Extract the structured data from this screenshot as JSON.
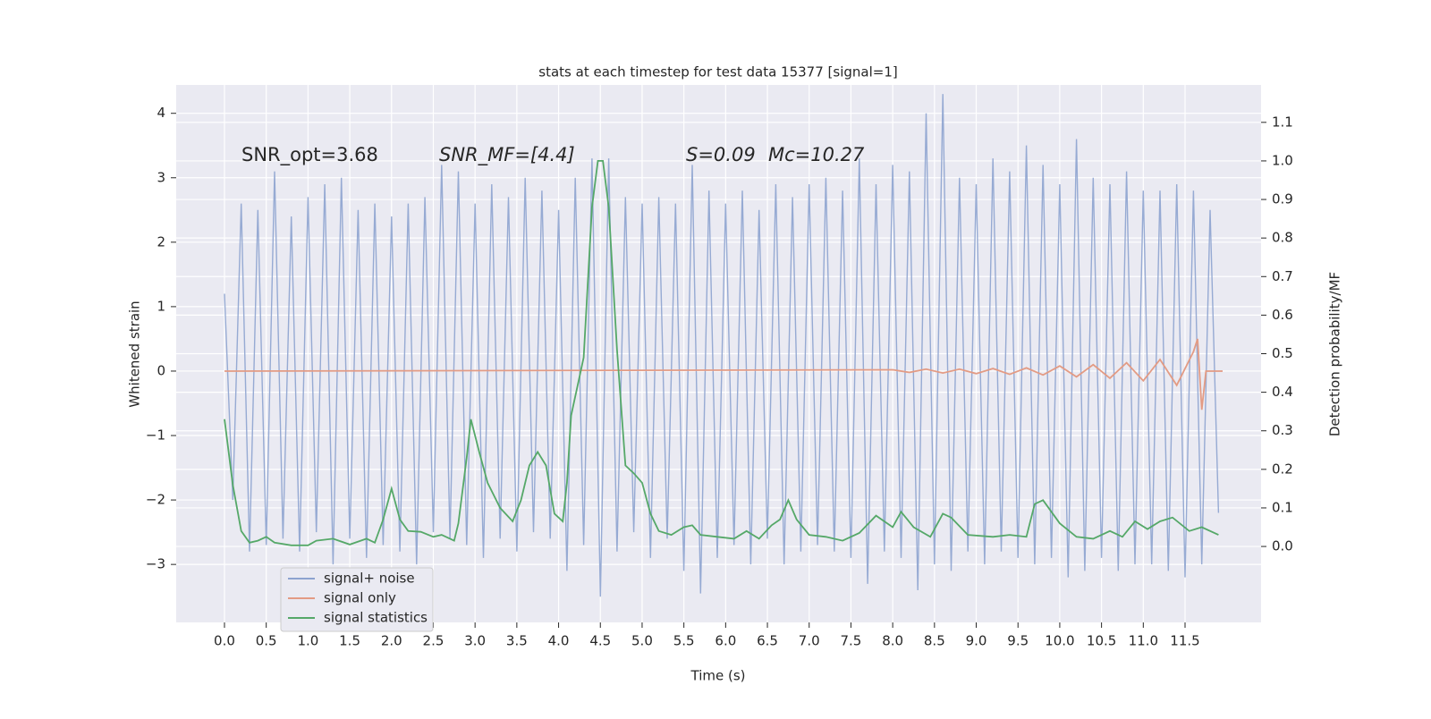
{
  "chart_data": {
    "type": "line",
    "title": "stats at each timestep for test data 15377 [signal=1]",
    "xlabel": "Time (s)",
    "ylabel": "Whitened strain",
    "y2label": "Detection probability/MF",
    "annotations": [
      "SNR_opt=3.68",
      "SNR_MF=[4.4]",
      "S=0.09",
      "Mc=10.27"
    ],
    "xlim": [
      -0.578,
      12.41
    ],
    "ylim": [
      -3.9,
      4.44
    ],
    "y2lim": [
      -0.197,
      1.197
    ],
    "xticks": [
      {
        "value": 0,
        "label": "0.0"
      },
      {
        "value": 0.5,
        "label": "0.5"
      },
      {
        "value": 1,
        "label": "1.0"
      },
      {
        "value": 1.5,
        "label": "1.5"
      },
      {
        "value": 2,
        "label": "2.0"
      },
      {
        "value": 2.5,
        "label": "2.5"
      },
      {
        "value": 3,
        "label": "3.0"
      },
      {
        "value": 3.5,
        "label": "3.5"
      },
      {
        "value": 4,
        "label": "4.0"
      },
      {
        "value": 4.5,
        "label": "4.5"
      },
      {
        "value": 5,
        "label": "5.0"
      },
      {
        "value": 5.5,
        "label": "5.5"
      },
      {
        "value": 6,
        "label": "6.0"
      },
      {
        "value": 6.5,
        "label": "6.5"
      },
      {
        "value": 7,
        "label": "7.0"
      },
      {
        "value": 7.5,
        "label": "7.5"
      },
      {
        "value": 8,
        "label": "8.0"
      },
      {
        "value": 8.5,
        "label": "8.5"
      },
      {
        "value": 9,
        "label": "9.0"
      },
      {
        "value": 9.5,
        "label": "9.5"
      },
      {
        "value": 10,
        "label": "10.0"
      },
      {
        "value": 10.5,
        "label": "10.5"
      },
      {
        "value": 11,
        "label": "11.0"
      },
      {
        "value": 11.5,
        "label": "11.5"
      }
    ],
    "yticks": [
      {
        "value": -3,
        "label": "−3"
      },
      {
        "value": -2,
        "label": "−2"
      },
      {
        "value": -1,
        "label": "−1"
      },
      0,
      1,
      2,
      3,
      4
    ],
    "y2ticks": [
      {
        "value": 0,
        "label": "0.0"
      },
      {
        "value": 0.1,
        "label": "0.1"
      },
      {
        "value": 0.2,
        "label": "0.2"
      },
      {
        "value": 0.3,
        "label": "0.3"
      },
      {
        "value": 0.4,
        "label": "0.4"
      },
      {
        "value": 0.5,
        "label": "0.5"
      },
      {
        "value": 0.6,
        "label": "0.6"
      },
      {
        "value": 0.7,
        "label": "0.7"
      },
      {
        "value": 0.8,
        "label": "0.8"
      },
      {
        "value": 0.9,
        "label": "0.9"
      },
      {
        "value": 1,
        "label": "1.0"
      },
      {
        "value": 1.1,
        "label": "1.1"
      }
    ],
    "grid": true,
    "legend": "lower left",
    "series": [
      {
        "name": "signal+ noise",
        "color": "#8da3cf",
        "x": [
          0,
          0.1,
          0.2,
          0.3,
          0.4,
          0.5,
          0.6,
          0.7,
          0.8,
          0.9,
          1,
          1.1,
          1.2,
          1.3,
          1.4,
          1.5,
          1.6,
          1.7,
          1.8,
          1.9,
          2,
          2.1,
          2.2,
          2.3,
          2.4,
          2.5,
          2.6,
          2.7,
          2.8,
          2.9,
          3,
          3.1,
          3.2,
          3.3,
          3.4,
          3.5,
          3.6,
          3.7,
          3.8,
          3.9,
          4,
          4.1,
          4.2,
          4.3,
          4.4,
          4.5,
          4.6,
          4.7,
          4.8,
          4.9,
          5,
          5.1,
          5.2,
          5.3,
          5.4,
          5.5,
          5.6,
          5.7,
          5.8,
          5.9,
          6,
          6.1,
          6.2,
          6.3,
          6.4,
          6.5,
          6.6,
          6.7,
          6.8,
          6.9,
          7,
          7.1,
          7.2,
          7.3,
          7.4,
          7.5,
          7.6,
          7.7,
          7.8,
          7.9,
          8,
          8.1,
          8.2,
          8.3,
          8.4,
          8.5,
          8.6,
          8.7,
          8.8,
          8.9,
          9,
          9.1,
          9.2,
          9.3,
          9.4,
          9.5,
          9.6,
          9.7,
          9.8,
          9.9,
          10,
          10.1,
          10.2,
          10.3,
          10.4,
          10.5,
          10.6,
          10.7,
          10.8,
          10.9,
          11,
          11.1,
          11.2,
          11.3,
          11.4,
          11.5,
          11.6,
          11.7,
          11.8,
          11.9
        ],
        "values": [
          1.2,
          -2.0,
          2.6,
          -2.8,
          2.5,
          -2.7,
          3.1,
          -2.6,
          2.4,
          -2.8,
          2.7,
          -2.5,
          2.9,
          -3.0,
          3.0,
          -2.6,
          2.5,
          -2.9,
          2.6,
          -2.7,
          2.4,
          -2.8,
          2.6,
          -3.0,
          2.7,
          -2.5,
          3.2,
          -2.6,
          3.1,
          -2.7,
          2.6,
          -2.9,
          2.9,
          -2.6,
          2.7,
          -2.8,
          3.0,
          -2.5,
          2.8,
          -2.6,
          2.5,
          -3.1,
          3.0,
          -2.7,
          3.3,
          -3.5,
          3.3,
          -2.8,
          2.7,
          -2.5,
          2.6,
          -2.9,
          2.7,
          -2.6,
          2.6,
          -3.1,
          3.2,
          -3.45,
          2.8,
          -2.9,
          2.6,
          -2.7,
          2.8,
          -3.0,
          2.5,
          -2.6,
          2.9,
          -3.0,
          2.7,
          -2.8,
          2.9,
          -2.7,
          3.0,
          -2.8,
          2.8,
          -2.9,
          3.3,
          -3.3,
          2.9,
          -2.8,
          3.2,
          -2.9,
          3.1,
          -3.4,
          4.0,
          -3.0,
          4.3,
          -3.1,
          3.0,
          -2.8,
          2.9,
          -3.0,
          3.3,
          -2.8,
          3.1,
          -2.9,
          3.5,
          -3.0,
          3.2,
          -2.9,
          2.9,
          -3.2,
          3.6,
          -3.1,
          3.0,
          -2.9,
          2.9,
          -3.1,
          3.1,
          -3.0,
          2.8,
          -3.0,
          2.8,
          -3.1,
          2.9,
          -3.2,
          2.8,
          -3.0,
          2.5,
          -2.2
        ]
      },
      {
        "name": "signal only",
        "color": "#e39b84",
        "x": [
          0,
          8,
          8.2,
          8.4,
          8.6,
          8.8,
          9,
          9.2,
          9.4,
          9.6,
          9.8,
          10,
          10.2,
          10.4,
          10.6,
          10.8,
          11,
          11.2,
          11.4,
          11.6,
          11.65,
          11.7,
          11.75,
          11.95
        ],
        "values": [
          0,
          0.02,
          -0.02,
          0.03,
          -0.03,
          0.03,
          -0.04,
          0.04,
          -0.05,
          0.05,
          -0.06,
          0.08,
          -0.09,
          0.1,
          -0.11,
          0.13,
          -0.15,
          0.18,
          -0.22,
          0.3,
          0.5,
          -0.6,
          0,
          0
        ]
      },
      {
        "name": "signal statistics",
        "color": "#55a868",
        "axis": "y2",
        "x": [
          0,
          0.1,
          0.2,
          0.3,
          0.4,
          0.5,
          0.6,
          0.8,
          1,
          1.1,
          1.3,
          1.5,
          1.7,
          1.8,
          1.9,
          2,
          2.1,
          2.2,
          2.35,
          2.5,
          2.6,
          2.75,
          2.8,
          2.9,
          2.95,
          3.05,
          3.15,
          3.3,
          3.45,
          3.55,
          3.65,
          3.75,
          3.85,
          3.95,
          4.05,
          4.1,
          4.15,
          4.3,
          4.4,
          4.47,
          4.53,
          4.6,
          4.7,
          4.8,
          4.9,
          5,
          5.1,
          5.2,
          5.35,
          5.5,
          5.6,
          5.7,
          5.9,
          6.1,
          6.25,
          6.4,
          6.55,
          6.65,
          6.75,
          6.85,
          7,
          7.2,
          7.4,
          7.6,
          7.8,
          8,
          8.1,
          8.25,
          8.45,
          8.6,
          8.7,
          8.9,
          9.2,
          9.4,
          9.6,
          9.7,
          9.8,
          10,
          10.2,
          10.4,
          10.6,
          10.75,
          10.9,
          11.05,
          11.2,
          11.35,
          11.55,
          11.7,
          11.9
        ],
        "values": [
          0.33,
          0.16,
          0.04,
          0.01,
          0.015,
          0.025,
          0.01,
          0.003,
          0.003,
          0.015,
          0.02,
          0.005,
          0.02,
          0.01,
          0.07,
          0.15,
          0.07,
          0.04,
          0.038,
          0.025,
          0.03,
          0.015,
          0.06,
          0.23,
          0.33,
          0.245,
          0.165,
          0.1,
          0.065,
          0.12,
          0.21,
          0.245,
          0.21,
          0.085,
          0.065,
          0.165,
          0.34,
          0.49,
          0.88,
          1.0,
          1.0,
          0.88,
          0.51,
          0.21,
          0.19,
          0.165,
          0.085,
          0.04,
          0.03,
          0.05,
          0.055,
          0.03,
          0.025,
          0.02,
          0.04,
          0.02,
          0.055,
          0.07,
          0.12,
          0.07,
          0.03,
          0.025,
          0.015,
          0.035,
          0.08,
          0.05,
          0.09,
          0.05,
          0.025,
          0.085,
          0.075,
          0.03,
          0.025,
          0.03,
          0.025,
          0.11,
          0.12,
          0.06,
          0.025,
          0.02,
          0.04,
          0.025,
          0.065,
          0.045,
          0.065,
          0.075,
          0.04,
          0.05,
          0.03
        ]
      }
    ]
  }
}
